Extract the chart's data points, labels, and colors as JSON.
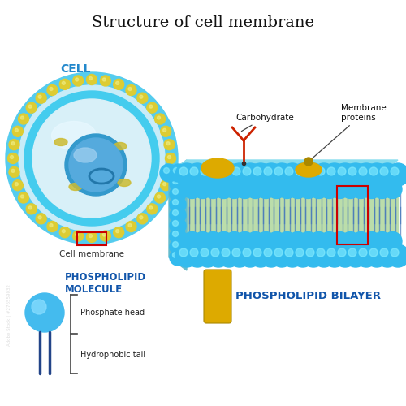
{
  "title": "Structure of cell membrane",
  "title_fontsize": 14,
  "bg_color": "#ffffff",
  "cell_label": "CELL",
  "cell_label_color": "#2288cc",
  "cell_membrane_label": "Cell membrane",
  "phospholipid_molecule_label": "PHOSPHOLIPID\nMOLECULE",
  "phospholipid_molecule_color": "#1155aa",
  "phosphate_head_label": "Phosphate head",
  "hydrophobic_tail_label": "Hydrophobic tail",
  "bilayer_label": "PHOSPHOLIPID BILAYER",
  "bilayer_label_color": "#1155aa",
  "carbohydrate_label": "Carbohydrate",
  "membrane_proteins_label": "Membrane\nproteins",
  "sphere_color": "#33bbee",
  "sphere_shine": "#88eeff",
  "tail_color_blue": "#3366bb",
  "cell_outer_color": "#33bbee",
  "nucleus_color_dark": "#3388cc",
  "nucleus_color_light": "#88ccee",
  "protein_color": "#ddaa00",
  "carbohydrate_color": "#cc2200",
  "green_interior": "#bbddaa",
  "red_box_color": "#cc0000",
  "yellow_dot_color": "#ddcc33",
  "organelle_color": "#ccbb33"
}
